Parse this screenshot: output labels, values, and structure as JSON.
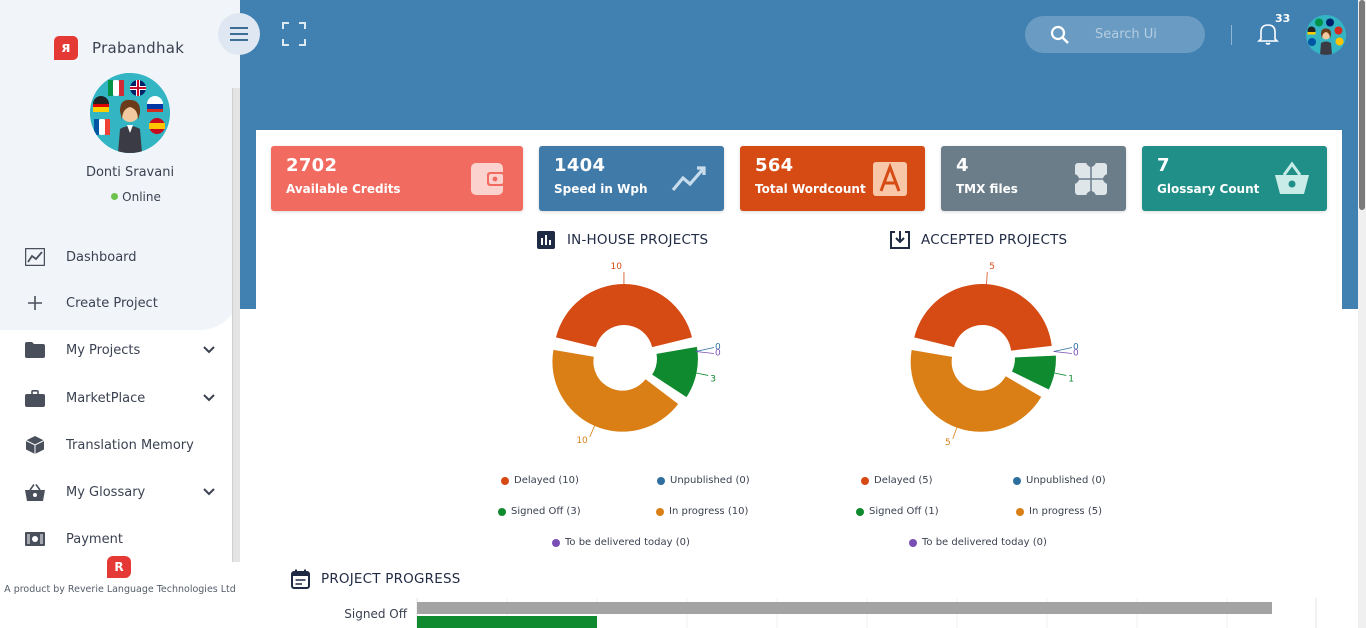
{
  "brand": {
    "name": "Prabandhak",
    "logo_glyph": "я"
  },
  "user": {
    "name": "Donti Sravani",
    "status": "Online"
  },
  "sidebar": {
    "items": [
      {
        "label": "Dashboard",
        "icon": "chart-line-icon",
        "has_chevron": false
      },
      {
        "label": "Create Project",
        "icon": "plus-icon",
        "has_chevron": false
      },
      {
        "label": "My Projects",
        "icon": "folder-icon",
        "has_chevron": true
      },
      {
        "label": "MarketPlace",
        "icon": "briefcase-icon",
        "has_chevron": true
      },
      {
        "label": "Translation Memory",
        "icon": "cube-icon",
        "has_chevron": false
      },
      {
        "label": "My Glossary",
        "icon": "basket-icon",
        "has_chevron": true
      },
      {
        "label": "Payment",
        "icon": "money-icon",
        "has_chevron": false
      }
    ],
    "footer_text": "A product by Reverie Language Technologies Ltd"
  },
  "header": {
    "search_placeholder": "Search Ui",
    "notification_count": "33"
  },
  "cards": [
    {
      "value": "2702",
      "label": "Available Credits",
      "color": "#f26b60",
      "icon": "wallet-icon"
    },
    {
      "value": "1404",
      "label": "Speed in Wph",
      "color": "#3f7aa8",
      "icon": "trend-icon"
    },
    {
      "value": "564",
      "label": "Total Wordcount",
      "color": "#d64a14",
      "icon": "letter-a-icon"
    },
    {
      "value": "4",
      "label": "TMX files",
      "color": "#6b7d89",
      "icon": "puzzle-icon"
    },
    {
      "value": "7",
      "label": "Glossary Count",
      "color": "#1f8f88",
      "icon": "basket-icon"
    }
  ],
  "inhouse": {
    "title": "IN-HOUSE PROJECTS",
    "legend": [
      "Delayed (10)",
      "Unpublished (0)",
      "Signed Off (3)",
      "In progress (10)",
      "To be delivered today (0)"
    ]
  },
  "accepted": {
    "title": "ACCEPTED PROJECTS",
    "legend": [
      "Delayed (5)",
      "Unpublished (0)",
      "Signed Off (1)",
      "In progress (5)",
      "To be delivered today (0)"
    ]
  },
  "progress": {
    "title": "PROJECT PROGRESS",
    "row_label": "Signed Off"
  },
  "colors": {
    "delayed": "#d64a14",
    "unpublished": "#2f6f9f",
    "signed_off": "#0f8a2e",
    "in_progress": "#d97f15",
    "today": "#7a4fb5",
    "header": "#4181b1"
  },
  "chart_data": [
    {
      "type": "pie",
      "title": "IN-HOUSE PROJECTS",
      "categories": [
        "Delayed",
        "Unpublished",
        "Signed Off",
        "In progress",
        "To be delivered today"
      ],
      "values": [
        10,
        0,
        3,
        10,
        0
      ],
      "data_labels": [
        "10",
        "0",
        "3",
        "10",
        "0"
      ]
    },
    {
      "type": "pie",
      "title": "ACCEPTED PROJECTS",
      "categories": [
        "Delayed",
        "Unpublished",
        "Signed Off",
        "In progress",
        "To be delivered today"
      ],
      "values": [
        5,
        0,
        1,
        5,
        0
      ],
      "data_labels": [
        "5",
        "0",
        "1",
        "5",
        "0"
      ]
    }
  ]
}
